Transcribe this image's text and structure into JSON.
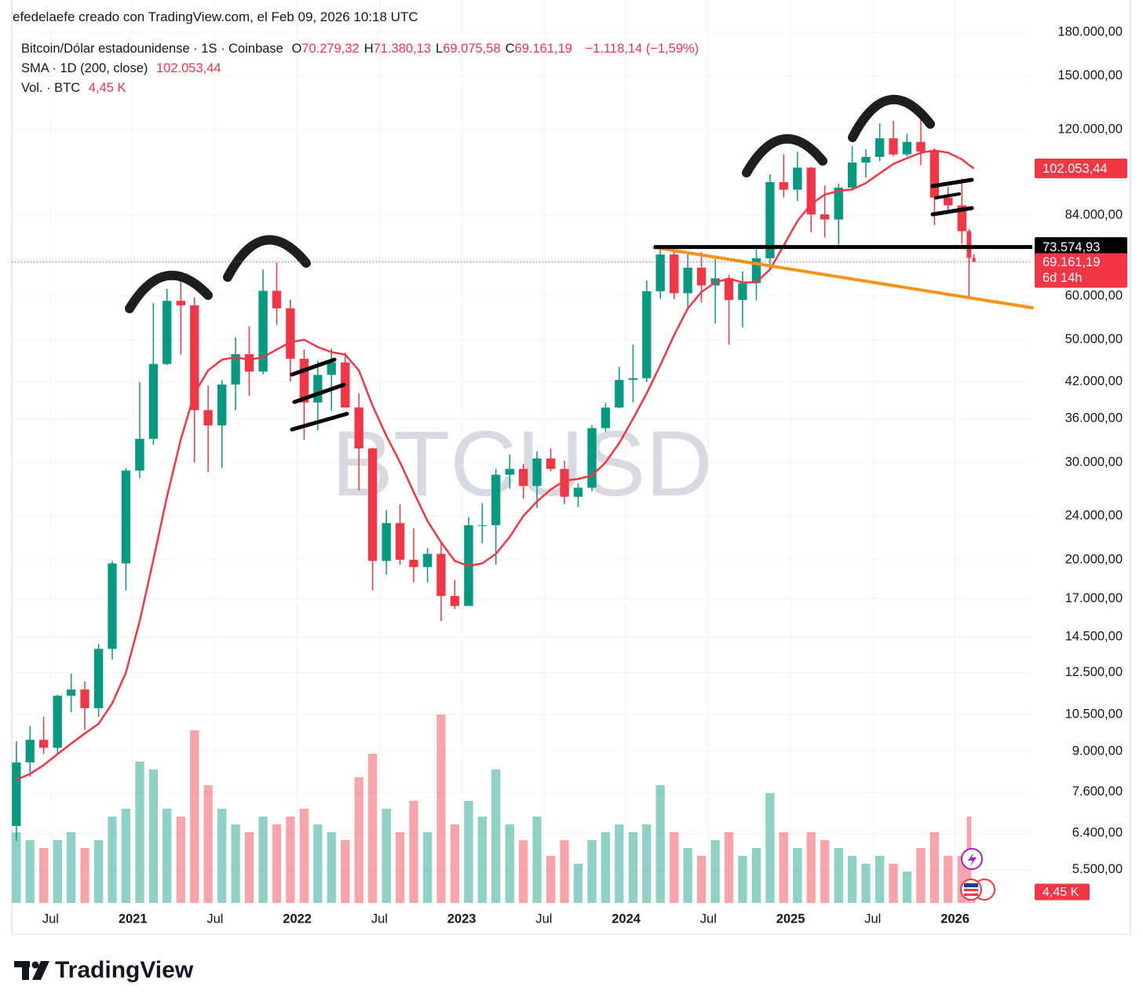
{
  "chart_data": {
    "type": "candlestick",
    "caption": "efedelaefe creado con TradingView.com, el Feb 09, 2026 10:18 UTC",
    "watermark": "BTCUSD",
    "brand": "TradingView",
    "legend": {
      "symbol": "Bitcoin/Dólar estadounidense · 1S · Coinbase",
      "ohlc_keys": [
        "O",
        "H",
        "L",
        "C"
      ],
      "ohlc_values": [
        "70.279,32",
        "71.380,13",
        "69.075,58",
        "69.161,19"
      ],
      "change": "−1.118,14 (−1,59%)",
      "sma_name": "SMA · 1D (200, close)",
      "sma_value": "102.053,44",
      "vol_name": "Vol. · BTC",
      "vol_value": "4,45 K"
    },
    "log_scale": true,
    "grid": true,
    "up_color": "#089981",
    "down_color": "#f23645",
    "sma_color": "#f23645",
    "ylim": [
      4790,
      186600
    ],
    "xlim": [
      2020.264,
      2026.47
    ],
    "volume_lim": [
      0,
      150000
    ],
    "yticks": [
      {
        "value": 180000,
        "label": "180.000,00"
      },
      {
        "value": 150000,
        "label": "150.000,00"
      },
      {
        "value": 120000,
        "label": "120.000,00"
      },
      {
        "value": 84000,
        "label": "84.000,00"
      },
      {
        "value": 60000,
        "label": "60.000,00"
      },
      {
        "value": 50000,
        "label": "50.000,00"
      },
      {
        "value": 42000,
        "label": "42.000,00"
      },
      {
        "value": 36000,
        "label": "36.000,00"
      },
      {
        "value": 30000,
        "label": "30.000,00"
      },
      {
        "value": 24000,
        "label": "24.000,00"
      },
      {
        "value": 20000,
        "label": "20.000,00"
      },
      {
        "value": 17000,
        "label": "17.000,00"
      },
      {
        "value": 14500,
        "label": "14.500,00"
      },
      {
        "value": 12500,
        "label": "12.500,00"
      },
      {
        "value": 10500,
        "label": "10.500,00"
      },
      {
        "value": 9000,
        "label": "9.000,00"
      },
      {
        "value": 7600,
        "label": "7.600,00"
      },
      {
        "value": 6400,
        "label": "6.400,00"
      },
      {
        "value": 5500,
        "label": "5.500,00"
      }
    ],
    "xticks": [
      {
        "value": 2020.5,
        "label": "Jul"
      },
      2021,
      {
        "value": 2021.5,
        "label": "Jul"
      },
      2022,
      {
        "value": 2022.5,
        "label": "Jul"
      },
      2023,
      {
        "value": 2023.5,
        "label": "Jul"
      },
      2024,
      {
        "value": 2024.5,
        "label": "Jul"
      },
      2025,
      {
        "value": 2025.5,
        "label": "Jul"
      },
      2026
    ],
    "price_labels": [
      {
        "value": 102053.44,
        "label": "102.053,44",
        "color": "#f23645"
      },
      {
        "value": 73574.93,
        "label": "73.574,93",
        "color": "#000000"
      },
      {
        "value": 69161.19,
        "label": "69.161,19",
        "sub": "6d 14h",
        "color": "#f23645"
      }
    ],
    "x": [
      2020.292,
      2020.375,
      2020.458,
      2020.542,
      2020.625,
      2020.708,
      2020.792,
      2020.875,
      2020.958,
      2021.042,
      2021.125,
      2021.208,
      2021.292,
      2021.375,
      2021.458,
      2021.542,
      2021.625,
      2021.708,
      2021.792,
      2021.875,
      2021.958,
      2022.042,
      2022.125,
      2022.208,
      2022.292,
      2022.375,
      2022.458,
      2022.542,
      2022.625,
      2022.708,
      2022.792,
      2022.875,
      2022.958,
      2023.042,
      2023.125,
      2023.208,
      2023.292,
      2023.375,
      2023.458,
      2023.542,
      2023.625,
      2023.708,
      2023.792,
      2023.875,
      2023.958,
      2024.042,
      2024.125,
      2024.208,
      2024.292,
      2024.375,
      2024.458,
      2024.542,
      2024.625,
      2024.708,
      2024.792,
      2024.875,
      2024.958,
      2025.042,
      2025.125,
      2025.208,
      2025.292,
      2025.375,
      2025.458,
      2025.542,
      2025.625,
      2025.708,
      2025.792,
      2025.875,
      2025.958,
      2026.042,
      2026.085,
      2026.115
    ],
    "open": [
      6600,
      8600,
      9450,
      9140,
      11350,
      11650,
      10780,
      13800,
      19700,
      29000,
      33100,
      45200,
      58800,
      57700,
      37300,
      35000,
      41500,
      47100,
      43800,
      61300,
      57000,
      46200,
      38500,
      43200,
      45500,
      37700,
      31800,
      19900,
      23300,
      20000,
      19400,
      20500,
      17200,
      16500,
      23100,
      23100,
      28500,
      29200,
      27200,
      30500,
      29200,
      26000,
      27000,
      34600,
      37700,
      42300,
      42600,
      61200,
      71300,
      60700,
      67500,
      62700,
      64600,
      59000,
      63300,
      70200,
      96400,
      93400,
      102400,
      84300,
      82500,
      94200,
      104600,
      107100,
      115700,
      108200,
      114000,
      109500,
      90400,
      87500,
      78600,
      70279.32
    ],
    "high": [
      9400,
      10000,
      10400,
      11400,
      12450,
      12050,
      14100,
      19900,
      29300,
      41900,
      58300,
      61800,
      64900,
      59600,
      41300,
      42300,
      50500,
      52900,
      67000,
      69000,
      59100,
      48000,
      45800,
      48200,
      47400,
      40000,
      31900,
      24600,
      25200,
      22800,
      21000,
      21500,
      18400,
      23900,
      25300,
      29200,
      31000,
      29800,
      31400,
      31800,
      30200,
      27500,
      35000,
      38400,
      44700,
      49000,
      64000,
      73800,
      72800,
      71900,
      72000,
      70000,
      65600,
      66500,
      73600,
      99600,
      108300,
      109400,
      102700,
      95000,
      95700,
      112000,
      110500,
      123200,
      124500,
      117900,
      126200,
      111000,
      94600,
      97900,
      79300,
      71380.13
    ],
    "low": [
      6200,
      8100,
      8900,
      8900,
      10600,
      9850,
      10400,
      13200,
      17600,
      28100,
      32300,
      45000,
      47000,
      30000,
      28800,
      29300,
      37300,
      39600,
      43300,
      53200,
      42000,
      33000,
      34300,
      37200,
      37700,
      26700,
      17600,
      18800,
      19600,
      18200,
      18200,
      15500,
      16300,
      16500,
      21400,
      19600,
      26900,
      25800,
      24800,
      28900,
      25200,
      24900,
      26600,
      34100,
      37600,
      38500,
      41900,
      59300,
      59200,
      56500,
      58400,
      53500,
      49000,
      52600,
      58900,
      66800,
      90500,
      89200,
      78200,
      76600,
      74400,
      93300,
      98200,
      105200,
      107300,
      107300,
      103500,
      80600,
      84500,
      74500,
      60000,
      69075.58
    ],
    "close": [
      8600,
      9450,
      9140,
      11350,
      11650,
      10780,
      13800,
      19700,
      29000,
      33100,
      45200,
      58800,
      57700,
      37300,
      35000,
      41500,
      47100,
      43800,
      61300,
      57000,
      46200,
      38500,
      43200,
      45500,
      37700,
      31800,
      19900,
      23300,
      20000,
      19400,
      20500,
      17200,
      16500,
      23100,
      23100,
      28500,
      29200,
      27200,
      30500,
      29200,
      26000,
      27000,
      34600,
      37700,
      42300,
      42600,
      61200,
      71300,
      60700,
      67500,
      62700,
      64600,
      59000,
      63300,
      70200,
      96400,
      93400,
      102400,
      84300,
      82500,
      94200,
      104600,
      107100,
      115700,
      108200,
      114000,
      109500,
      90400,
      87500,
      78600,
      70279.33,
      69161.19
    ],
    "volume": [
      45000,
      40000,
      35000,
      40000,
      45000,
      35000,
      40000,
      55000,
      60000,
      90000,
      85000,
      60000,
      55000,
      110000,
      75000,
      60000,
      50000,
      45000,
      55000,
      50000,
      55000,
      60000,
      50000,
      45000,
      40000,
      80000,
      95000,
      60000,
      45000,
      65000,
      45000,
      120000,
      50000,
      65000,
      55000,
      85000,
      50000,
      40000,
      55000,
      30000,
      40000,
      25000,
      40000,
      45000,
      50000,
      45000,
      50000,
      75000,
      45000,
      35000,
      30000,
      40000,
      45000,
      30000,
      35000,
      70000,
      45000,
      35000,
      45000,
      40000,
      35000,
      30000,
      25000,
      30000,
      25000,
      20000,
      35000,
      45000,
      30000,
      30000,
      55000,
      4450
    ],
    "sma": [
      8000,
      8200,
      8500,
      8900,
      9300,
      9700,
      10100,
      11000,
      12500,
      15500,
      20000,
      26000,
      33000,
      40000,
      44000,
      46000,
      46500,
      46000,
      46500,
      48000,
      49500,
      50000,
      48500,
      47500,
      47000,
      44000,
      38000,
      33500,
      30000,
      26500,
      23500,
      21500,
      19900,
      19500,
      19700,
      20500,
      22000,
      24000,
      25500,
      26800,
      27800,
      28000,
      28400,
      30000,
      32500,
      36000,
      40000,
      45000,
      51000,
      57000,
      61000,
      63500,
      64500,
      63500,
      63500,
      67000,
      74000,
      82000,
      88000,
      91500,
      93000,
      93500,
      96000,
      100000,
      104000,
      106500,
      109000,
      110000,
      109000,
      106000,
      103500,
      102053.44
    ]
  }
}
